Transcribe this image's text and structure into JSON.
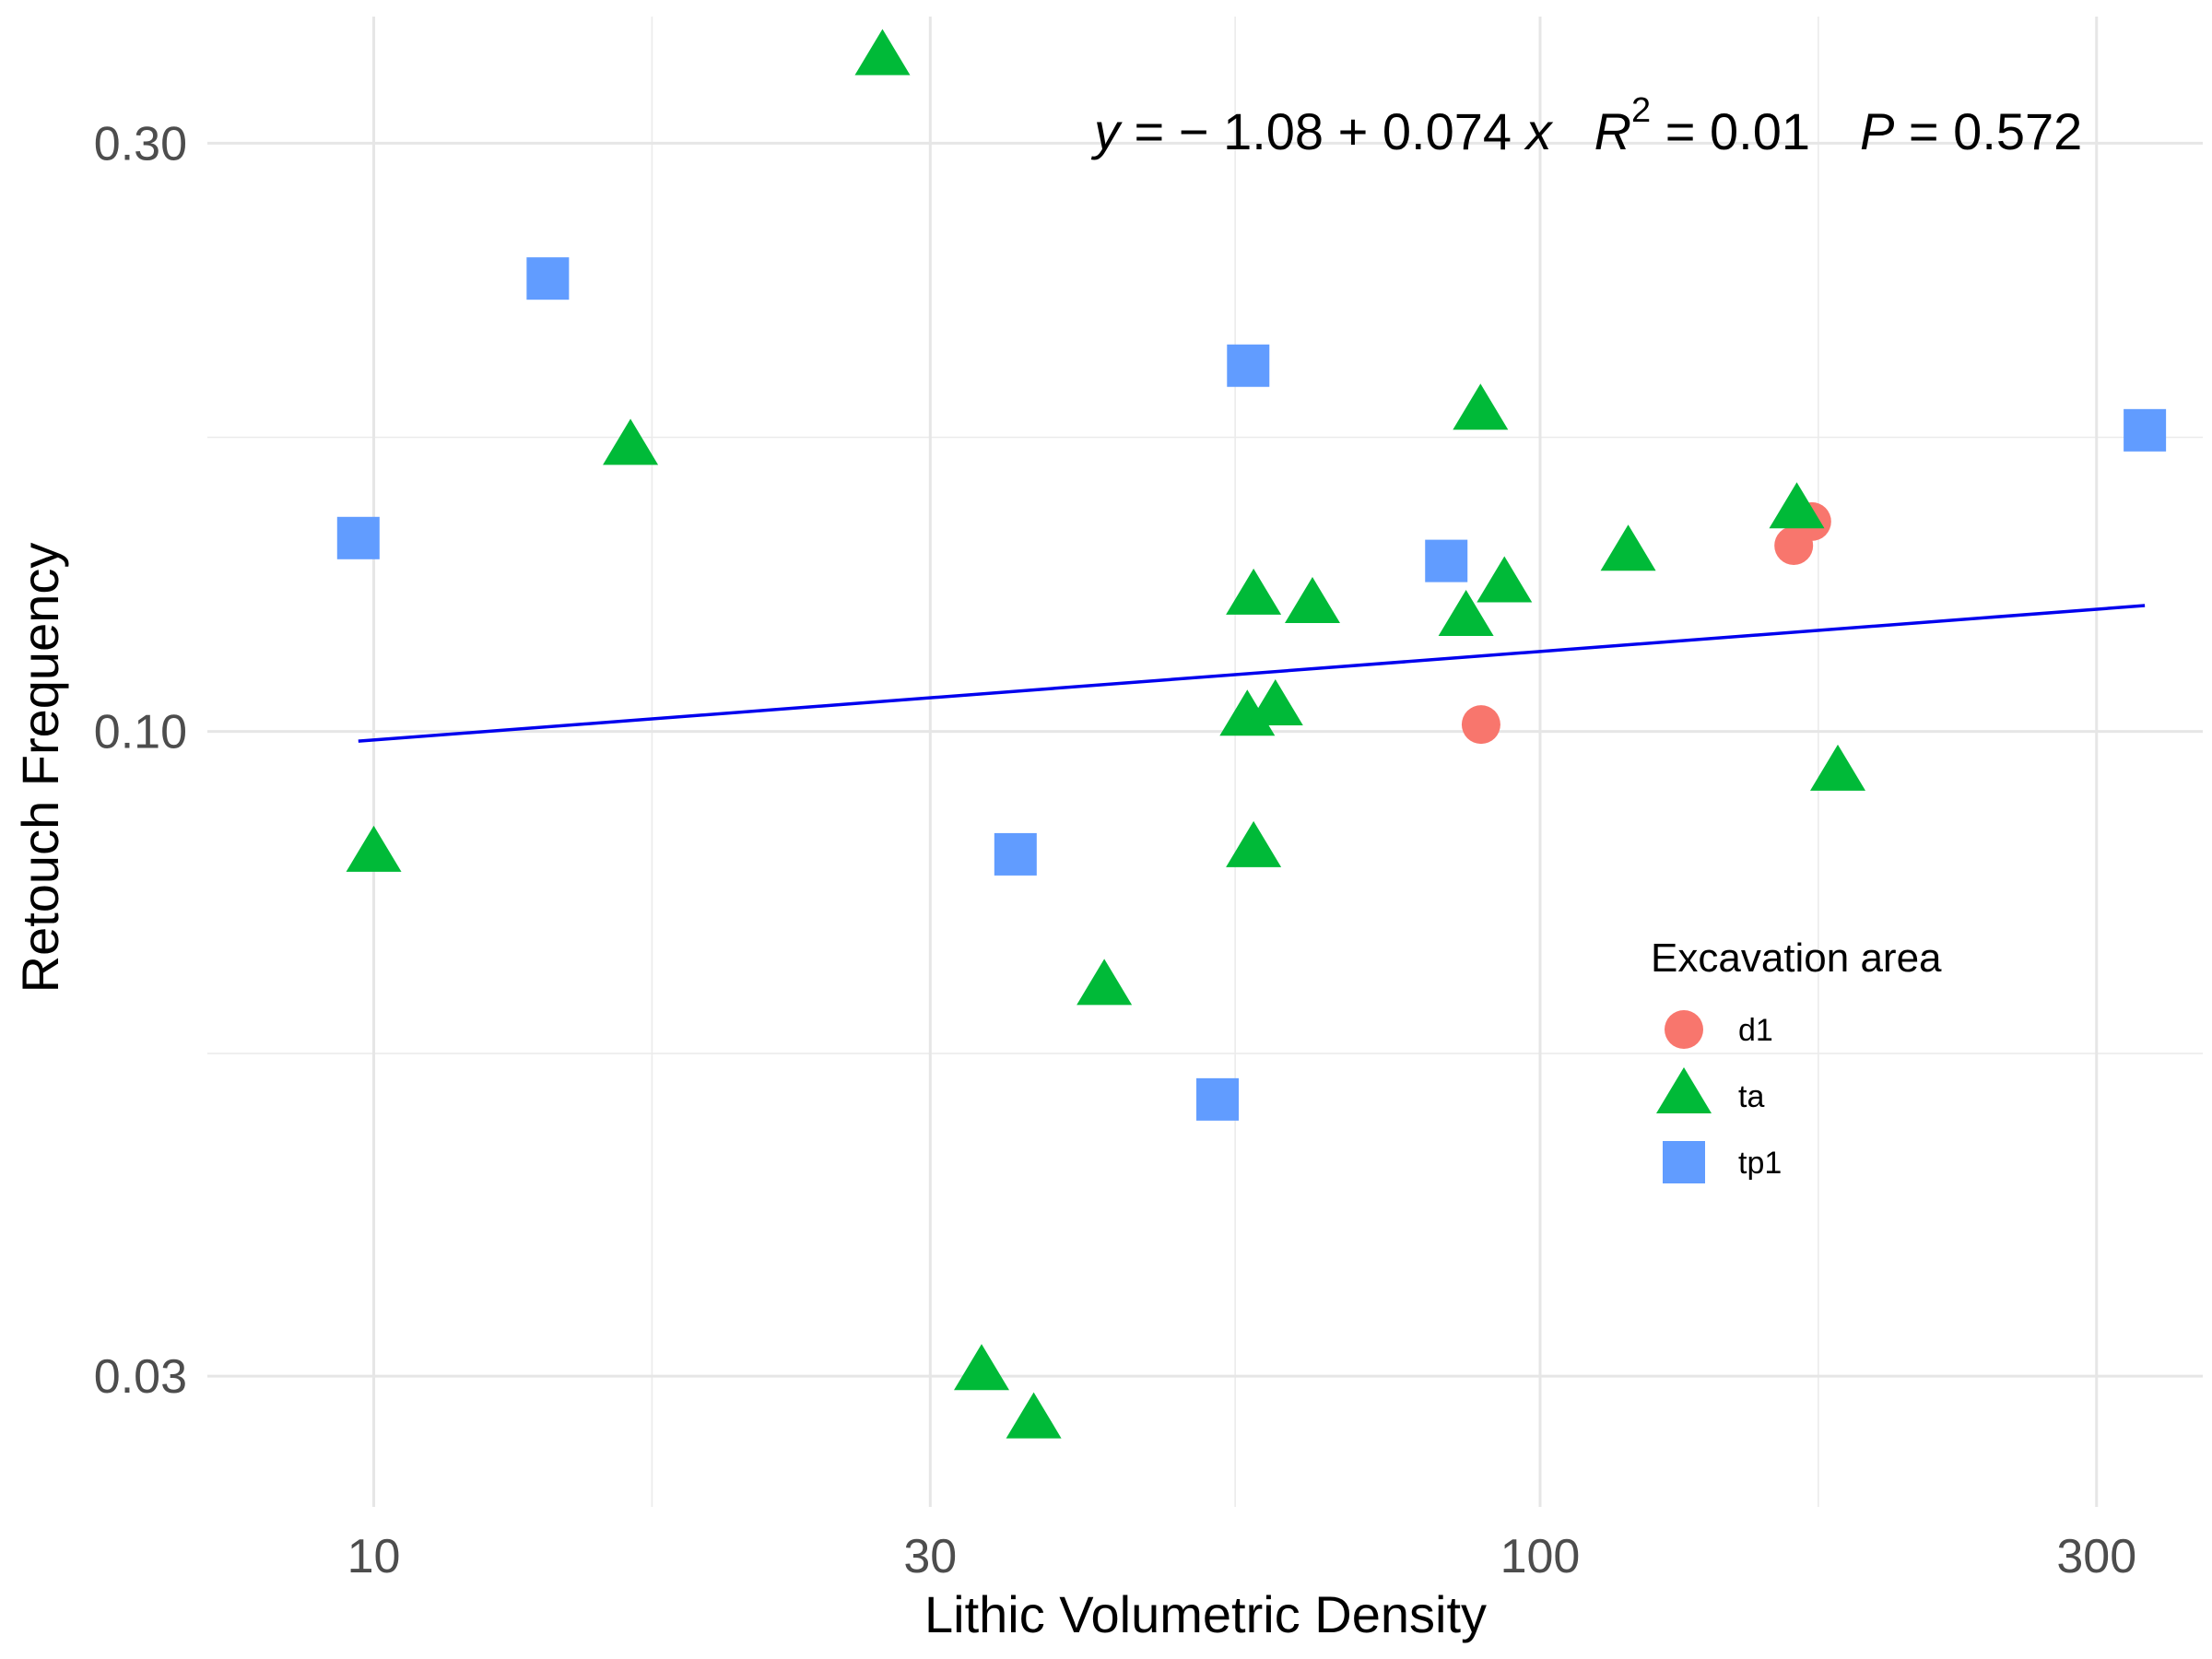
{
  "chart_data": {
    "type": "scatter",
    "title": "",
    "xlabel": "Lithic Volumetric Density",
    "ylabel": "Retouch Frequency",
    "x_scale": "log10",
    "y_scale": "log10",
    "xlim": [
      7.2,
      370
    ],
    "ylim": [
      0.0235,
      0.38
    ],
    "x_ticks": [
      10,
      30,
      100,
      300
    ],
    "x_tick_labels": [
      "10",
      "30",
      "100",
      "300"
    ],
    "x_minor_ticks": [
      17.32,
      54.77,
      173.2
    ],
    "y_ticks": [
      0.03,
      0.1,
      0.3
    ],
    "y_tick_labels": [
      "0.03",
      "0.10",
      "0.30"
    ],
    "y_minor_ticks": [
      0.0548,
      0.1732
    ],
    "grid": true,
    "annotation": {
      "y": "y",
      "eq_rest": " = − 1.08 + 0.074 ",
      "x": "x",
      "R": "R",
      "sup": "2",
      "r2_rest": " = 0.01",
      "P": "P",
      "p_rest": " = 0.572"
    },
    "fit_line": {
      "color": "#0000ee",
      "x": [
        9.7,
        330
      ],
      "y": [
        0.0982,
        0.1265
      ]
    },
    "legend": {
      "title": "Excavation area",
      "position": "right-inside"
    },
    "series": [
      {
        "name": "d1",
        "marker": "circle",
        "color": "#f8766d",
        "points": [
          {
            "x": 89,
            "y": 0.1013
          },
          {
            "x": 165,
            "y": 0.1415
          },
          {
            "x": 171,
            "y": 0.148
          }
        ]
      },
      {
        "name": "ta",
        "marker": "triangle",
        "color": "#00ba38",
        "points": [
          {
            "x": 27.3,
            "y": 0.352
          },
          {
            "x": 16.6,
            "y": 0.17
          },
          {
            "x": 10.0,
            "y": 0.0795
          },
          {
            "x": 42.3,
            "y": 0.062
          },
          {
            "x": 33.2,
            "y": 0.0302
          },
          {
            "x": 36.8,
            "y": 0.0276
          },
          {
            "x": 56.1,
            "y": 0.1025
          },
          {
            "x": 59.3,
            "y": 0.1045
          },
          {
            "x": 56.8,
            "y": 0.0802
          },
          {
            "x": 56.8,
            "y": 0.1285
          },
          {
            "x": 63.8,
            "y": 0.1265
          },
          {
            "x": 88.9,
            "y": 0.1815
          },
          {
            "x": 86.4,
            "y": 0.1235
          },
          {
            "x": 93.2,
            "y": 0.1315
          },
          {
            "x": 119,
            "y": 0.1395
          },
          {
            "x": 166,
            "y": 0.151
          },
          {
            "x": 180,
            "y": 0.0925
          }
        ]
      },
      {
        "name": "tp1",
        "marker": "square",
        "color": "#619cff",
        "points": [
          {
            "x": 9.7,
            "y": 0.1435
          },
          {
            "x": 14.1,
            "y": 0.233
          },
          {
            "x": 35.5,
            "y": 0.0795
          },
          {
            "x": 56.2,
            "y": 0.198
          },
          {
            "x": 52.9,
            "y": 0.0503
          },
          {
            "x": 83.1,
            "y": 0.1375
          },
          {
            "x": 330,
            "y": 0.1755
          }
        ]
      }
    ]
  }
}
